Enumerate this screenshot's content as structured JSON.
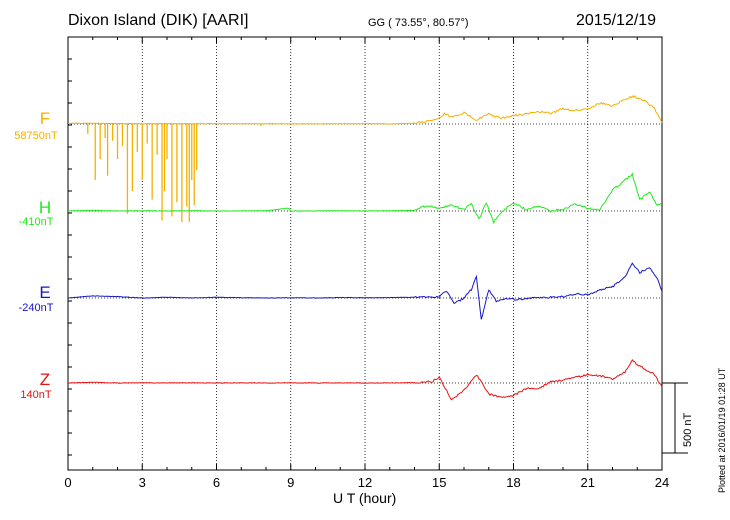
{
  "header": {
    "station": "Dixon Island (DIK)  [AARI]",
    "coords": "GG ( 73.55°,  80.57°)",
    "date": "2015/12/19"
  },
  "footer": {
    "plotted": "Plotted at 2016/01/19 01:28 UT"
  },
  "chart_data": {
    "type": "line",
    "xlabel": "U T (hour)",
    "xlim": [
      0,
      24
    ],
    "xticks": [
      "0",
      "3",
      "6",
      "9",
      "12",
      "15",
      "18",
      "21",
      "24"
    ],
    "scale_bar": {
      "label": "500 nT",
      "value_nT": 500
    },
    "grid": true,
    "series": [
      {
        "name": "F",
        "baseline_label": "58750nT",
        "color": "#f5b000",
        "points": [
          [
            0,
            -5
          ],
          [
            1,
            -5
          ],
          [
            2,
            -3
          ],
          [
            3,
            -2
          ],
          [
            4,
            -3
          ],
          [
            5,
            -2
          ],
          [
            6,
            -2
          ],
          [
            7,
            -1
          ],
          [
            8,
            -2
          ],
          [
            9,
            -1
          ],
          [
            10,
            -1
          ],
          [
            11,
            -2
          ],
          [
            12,
            -2
          ],
          [
            13,
            -1
          ],
          [
            14,
            -5
          ],
          [
            14.5,
            -20
          ],
          [
            15,
            -40
          ],
          [
            15.2,
            -75
          ],
          [
            15.5,
            -50
          ],
          [
            16,
            -80
          ],
          [
            16.5,
            -30
          ],
          [
            17,
            -70
          ],
          [
            17.5,
            -40
          ],
          [
            18,
            -60
          ],
          [
            18.5,
            -70
          ],
          [
            19,
            -90
          ],
          [
            19.5,
            -75
          ],
          [
            20,
            -110
          ],
          [
            20.5,
            -95
          ],
          [
            21,
            -110
          ],
          [
            21.5,
            -150
          ],
          [
            22,
            -130
          ],
          [
            22.5,
            -175
          ],
          [
            22.8,
            -200
          ],
          [
            23.3,
            -170
          ],
          [
            23.7,
            -110
          ],
          [
            24,
            -10
          ]
        ],
        "spikes": [
          [
            0.8,
            -70
          ],
          [
            1.1,
            -400
          ],
          [
            1.3,
            -250
          ],
          [
            1.5,
            -100
          ],
          [
            1.6,
            -370
          ],
          [
            1.8,
            -120
          ],
          [
            2.0,
            -250
          ],
          [
            2.2,
            -160
          ],
          [
            2.4,
            -640
          ],
          [
            2.6,
            -480
          ],
          [
            2.8,
            -200
          ],
          [
            3.0,
            -400
          ],
          [
            3.2,
            -140
          ],
          [
            3.4,
            -540
          ],
          [
            3.6,
            -220
          ],
          [
            3.8,
            -690
          ],
          [
            3.9,
            -480
          ],
          [
            4.0,
            -250
          ],
          [
            4.2,
            -660
          ],
          [
            4.4,
            -560
          ],
          [
            4.6,
            -700
          ],
          [
            4.8,
            -590
          ],
          [
            4.9,
            -700
          ],
          [
            5.0,
            -400
          ],
          [
            5.1,
            -580
          ],
          [
            5.2,
            -330
          ],
          [
            7.8,
            -15
          ]
        ]
      },
      {
        "name": "H",
        "baseline_label": "-410nT",
        "color": "#22e81d",
        "points": [
          [
            0,
            0
          ],
          [
            1,
            -5
          ],
          [
            2,
            0
          ],
          [
            3,
            -2
          ],
          [
            4,
            0
          ],
          [
            5,
            -2
          ],
          [
            6,
            0
          ],
          [
            7,
            -1
          ],
          [
            8,
            -2
          ],
          [
            8.9,
            -20
          ],
          [
            9,
            0
          ],
          [
            10,
            -1
          ],
          [
            11,
            -2
          ],
          [
            12,
            0
          ],
          [
            13,
            -2
          ],
          [
            14,
            -5
          ],
          [
            14.5,
            -40
          ],
          [
            15,
            -20
          ],
          [
            15.5,
            -40
          ],
          [
            16,
            -10
          ],
          [
            16.3,
            -50
          ],
          [
            16.6,
            60
          ],
          [
            16.9,
            -60
          ],
          [
            17.2,
            80
          ],
          [
            17.5,
            10
          ],
          [
            18,
            -60
          ],
          [
            18.5,
            -10
          ],
          [
            19,
            -40
          ],
          [
            19.5,
            0
          ],
          [
            20,
            -10
          ],
          [
            20.5,
            -50
          ],
          [
            21,
            -20
          ],
          [
            21.5,
            -10
          ],
          [
            22,
            -150
          ],
          [
            22.5,
            -220
          ],
          [
            22.8,
            -260
          ],
          [
            23.1,
            -80
          ],
          [
            23.5,
            -140
          ],
          [
            23.8,
            -40
          ],
          [
            24,
            -60
          ]
        ]
      },
      {
        "name": "E",
        "baseline_label": "-240nT",
        "color": "#1515cc",
        "points": [
          [
            0,
            0
          ],
          [
            1,
            -15
          ],
          [
            2,
            -10
          ],
          [
            3,
            0
          ],
          [
            4,
            -5
          ],
          [
            5,
            0
          ],
          [
            6,
            -5
          ],
          [
            7,
            -2
          ],
          [
            8,
            0
          ],
          [
            9,
            -2
          ],
          [
            10,
            0
          ],
          [
            11,
            -3
          ],
          [
            12,
            -2
          ],
          [
            13,
            -3
          ],
          [
            14,
            -5
          ],
          [
            15,
            -10
          ],
          [
            15.3,
            -50
          ],
          [
            15.6,
            40
          ],
          [
            16,
            0
          ],
          [
            16.3,
            -60
          ],
          [
            16.5,
            -150
          ],
          [
            16.7,
            160
          ],
          [
            17,
            -60
          ],
          [
            17.3,
            20
          ],
          [
            17.8,
            0
          ],
          [
            18,
            10
          ],
          [
            19,
            0
          ],
          [
            20,
            -10
          ],
          [
            20.5,
            -30
          ],
          [
            21,
            -20
          ],
          [
            21.5,
            -60
          ],
          [
            22,
            -80
          ],
          [
            22.5,
            -150
          ],
          [
            22.8,
            -250
          ],
          [
            23.1,
            -180
          ],
          [
            23.5,
            -220
          ],
          [
            23.8,
            -140
          ],
          [
            24,
            -50
          ]
        ]
      },
      {
        "name": "Z",
        "baseline_label": "140nT",
        "color": "#e81010",
        "points": [
          [
            0,
            0
          ],
          [
            1,
            -5
          ],
          [
            2,
            0
          ],
          [
            3,
            -2
          ],
          [
            4,
            0
          ],
          [
            5,
            -2
          ],
          [
            6,
            0
          ],
          [
            7,
            -1
          ],
          [
            8,
            0
          ],
          [
            9,
            -1
          ],
          [
            10,
            0
          ],
          [
            11,
            -1
          ],
          [
            12,
            0
          ],
          [
            13,
            -1
          ],
          [
            14,
            -2
          ],
          [
            14.7,
            -10
          ],
          [
            15,
            -40
          ],
          [
            15.5,
            120
          ],
          [
            16,
            50
          ],
          [
            16.5,
            -60
          ],
          [
            17,
            80
          ],
          [
            17.5,
            100
          ],
          [
            18,
            90
          ],
          [
            18.5,
            40
          ],
          [
            19,
            40
          ],
          [
            19.5,
            -10
          ],
          [
            20,
            -20
          ],
          [
            20.5,
            -40
          ],
          [
            21,
            -60
          ],
          [
            21.5,
            -50
          ],
          [
            22,
            -30
          ],
          [
            22.5,
            -80
          ],
          [
            22.8,
            -160
          ],
          [
            23.2,
            -110
          ],
          [
            23.7,
            -60
          ],
          [
            24,
            30
          ]
        ]
      }
    ]
  }
}
